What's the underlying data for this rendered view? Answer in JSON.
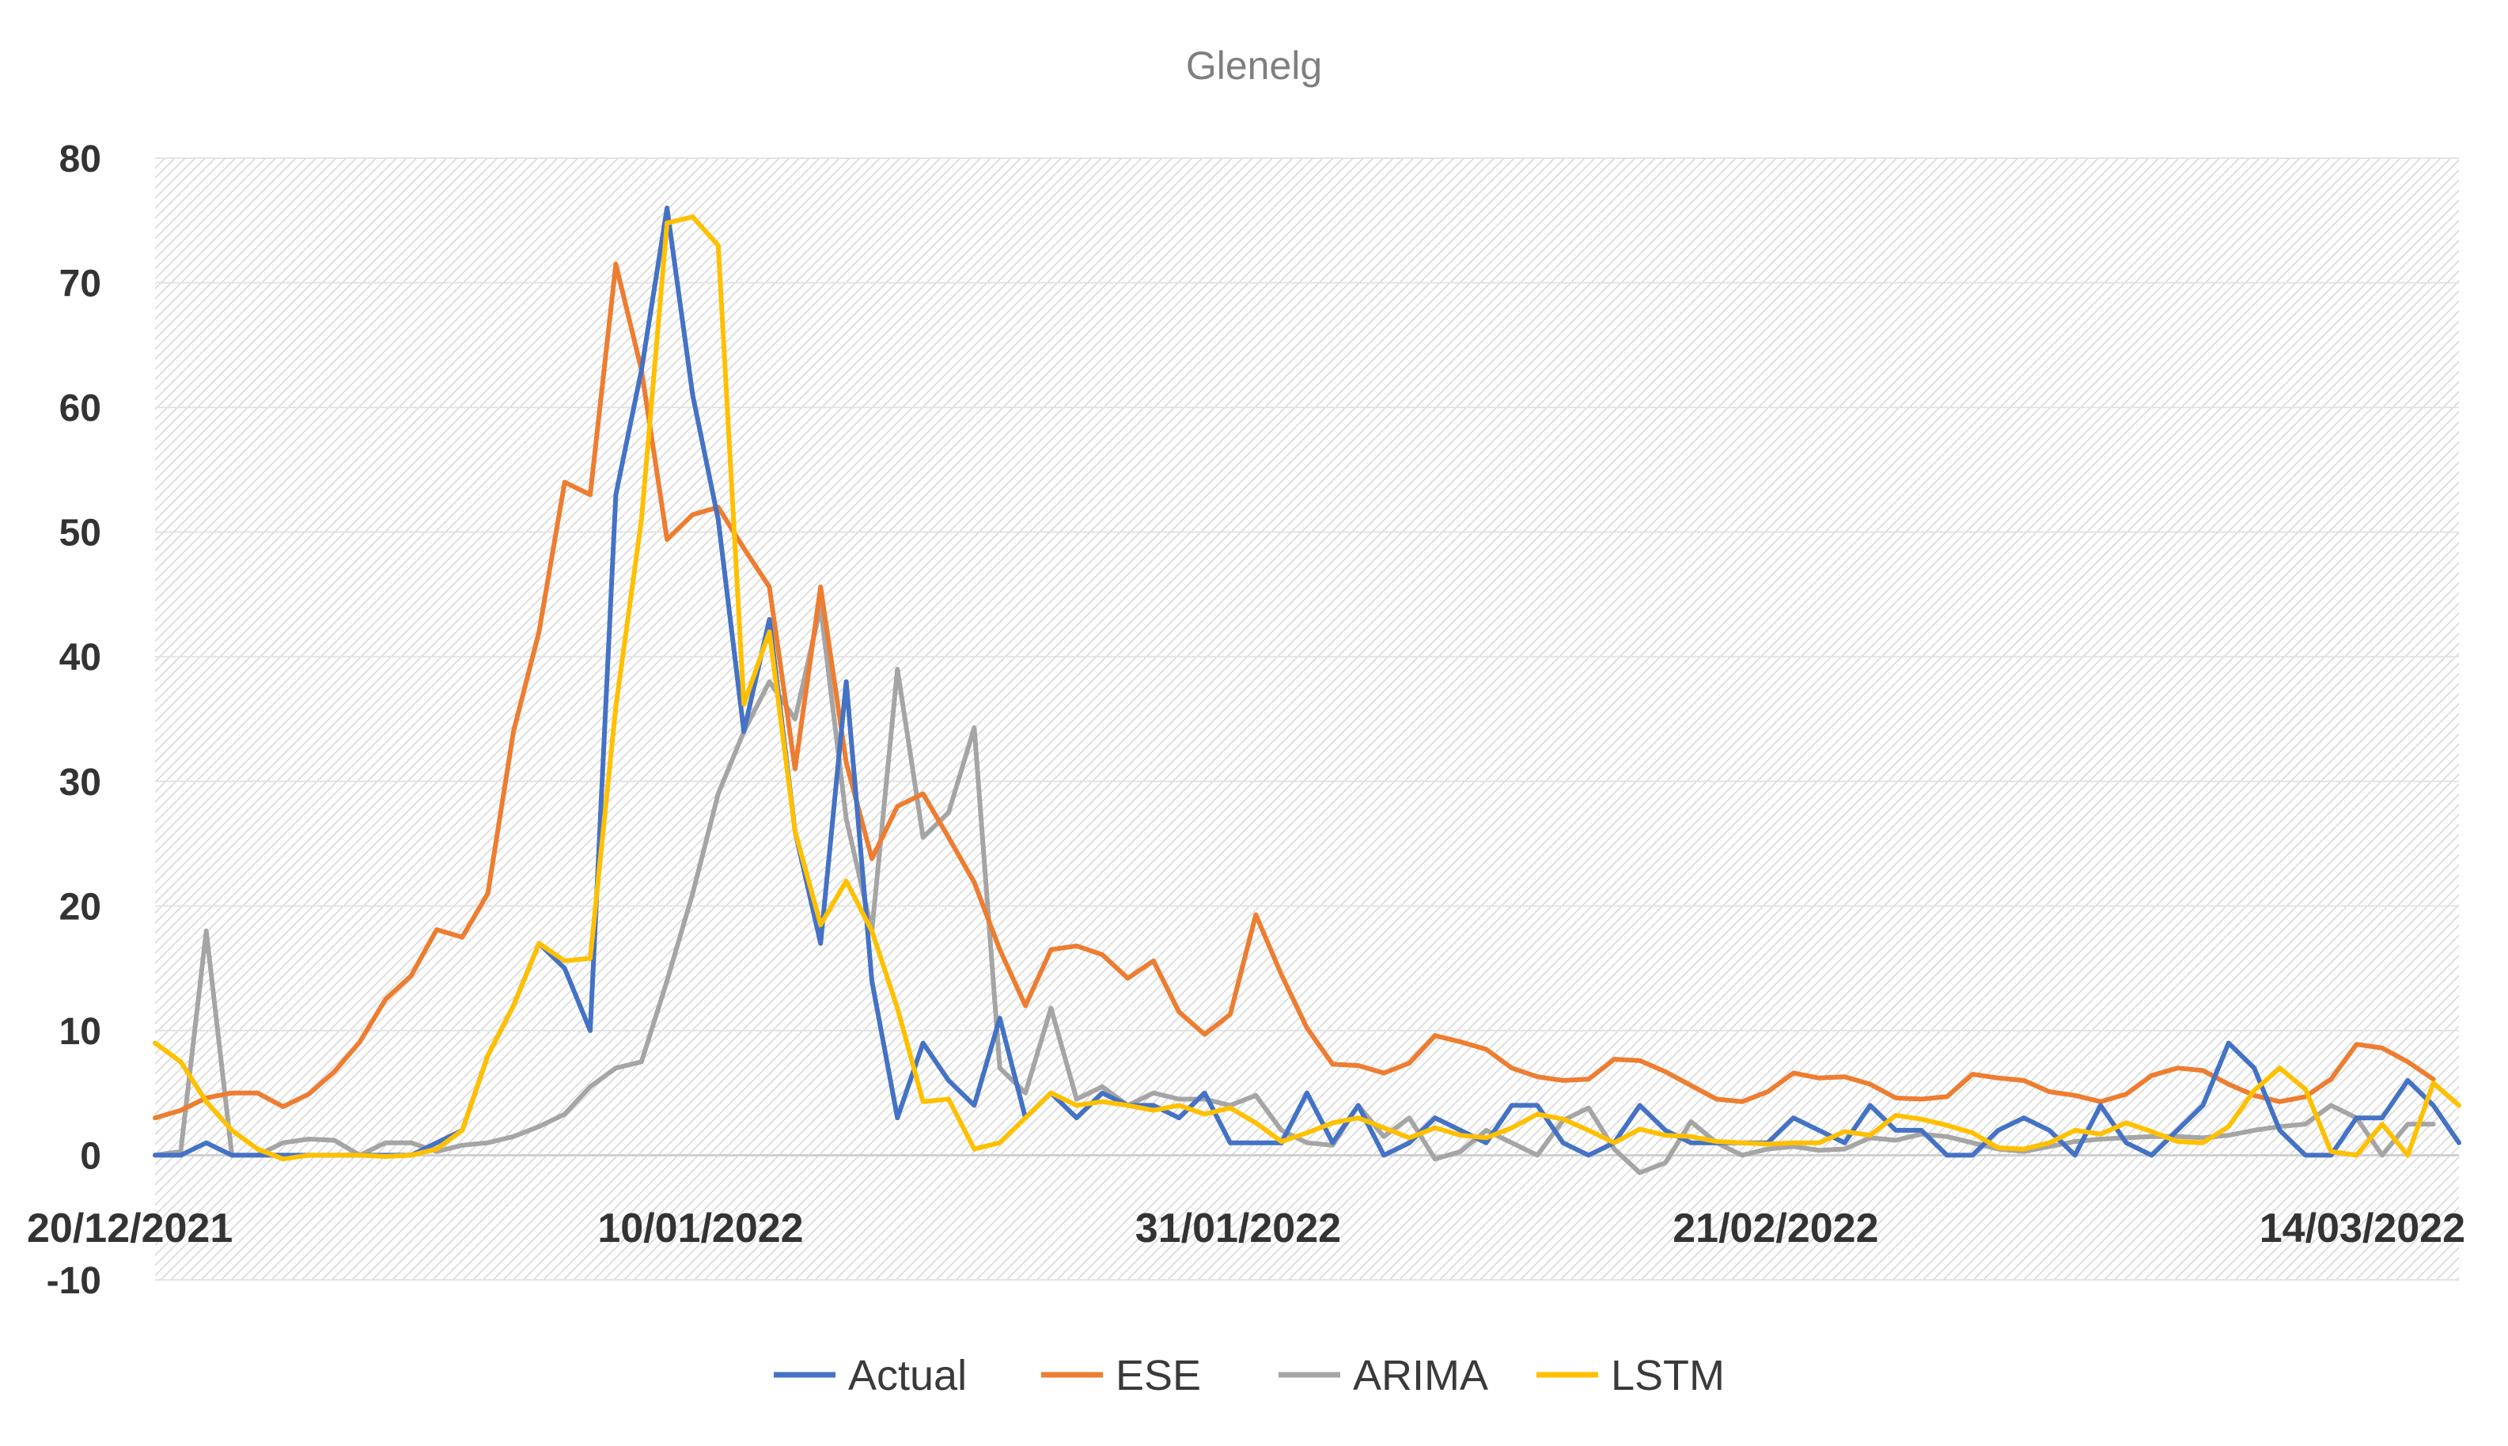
{
  "chart_data": {
    "type": "line",
    "title": "Glenelg",
    "xlabel": "",
    "ylabel": "",
    "ylim": [
      -10,
      80
    ],
    "yticks": [
      80,
      70,
      60,
      50,
      40,
      30,
      20,
      10,
      0,
      -10
    ],
    "xticks": [
      "20/12/2021",
      "10/01/2022",
      "31/01/2022",
      "21/02/2022",
      "14/03/2022"
    ],
    "x_start": "20/12/2021",
    "x_end": "22/03/2022",
    "legend_position": "bottom",
    "grid": true,
    "series": [
      {
        "name": "Actual",
        "color": "#4472C4",
        "values": [
          0,
          0,
          1,
          0,
          0,
          0,
          0,
          0,
          0,
          0,
          0,
          1,
          2,
          8,
          12,
          17,
          15,
          10,
          53,
          63,
          76,
          61,
          51,
          34,
          43,
          26,
          17,
          38,
          14,
          3,
          9,
          6,
          4,
          11,
          3,
          5,
          3,
          5,
          4,
          4,
          3,
          5,
          1,
          1,
          1,
          5,
          1,
          4,
          0,
          1,
          3,
          2,
          1,
          4,
          4,
          1,
          0,
          1,
          4,
          2,
          1,
          1,
          1,
          1,
          3,
          2,
          1,
          4,
          2,
          2,
          0,
          0,
          2,
          3,
          2,
          0,
          4,
          1,
          0,
          2,
          4,
          9,
          7,
          2,
          0,
          0,
          3,
          3,
          6,
          4,
          1
        ]
      },
      {
        "name": "ESE",
        "color": "#ED7D31",
        "values": [
          3,
          3.6,
          4.6,
          5,
          5,
          3.9,
          4.9,
          6.7,
          9.1,
          12.5,
          14.4,
          18.1,
          17.5,
          21,
          34,
          42,
          54,
          53,
          71.5,
          63,
          49.4,
          51.4,
          52,
          48.7,
          45.6,
          31,
          45.6,
          31.5,
          23.8,
          28,
          29,
          25.5,
          21.9,
          16.5,
          12,
          16.5,
          16.8,
          16.1,
          14.2,
          15.6,
          11.5,
          9.7,
          11.3,
          19.3,
          14.5,
          10.2,
          7.3,
          7.2,
          6.6,
          7.4,
          9.6,
          9.1,
          8.5,
          7,
          6.3,
          6,
          6.1,
          7.7,
          7.6,
          6.7,
          5.6,
          4.5,
          4.3,
          5.1,
          6.6,
          6.2,
          6.3,
          5.7,
          4.6,
          4.5,
          4.7,
          6.5,
          6.2,
          6,
          5.1,
          4.8,
          4.3,
          4.9,
          6.4,
          7,
          6.8,
          5.7,
          4.8,
          4.3,
          4.7,
          6.1,
          8.9,
          8.6,
          7.5,
          6.1
        ]
      },
      {
        "name": "ARIMA",
        "color": "#A5A5A5",
        "values": [
          0,
          0.3,
          18,
          0,
          0,
          1,
          1.3,
          1.2,
          0,
          1,
          1,
          0.3,
          0.8,
          1,
          1.5,
          2.3,
          3.3,
          5.5,
          7,
          7.5,
          14,
          21,
          29,
          34,
          38,
          35,
          44,
          27,
          18,
          39,
          25.5,
          27.5,
          34.3,
          7,
          5,
          11.8,
          4.5,
          5.5,
          4,
          5,
          4.5,
          4.5,
          4,
          4.8,
          2,
          1,
          0.8,
          4,
          1.5,
          3,
          -0.3,
          0.3,
          2,
          1,
          0,
          2.8,
          3.8,
          0.5,
          -1.4,
          -0.6,
          2.7,
          1,
          0,
          0.5,
          0.7,
          0.4,
          0.5,
          1.4,
          1.2,
          1.7,
          1.5,
          1,
          0.5,
          0.3,
          0.7,
          1.1,
          1.3,
          1.4,
          1.5,
          1.5,
          1.4,
          1.6,
          2,
          2.3,
          2.5,
          4,
          3,
          0,
          2.5,
          2.5
        ]
      },
      {
        "name": "LSTM",
        "color": "#FFC000",
        "values": [
          9,
          7.5,
          4.3,
          2,
          0.5,
          -0.3,
          0,
          0,
          0,
          -0.1,
          0,
          0.5,
          2,
          8,
          12,
          17,
          15.6,
          15.8,
          36,
          51,
          74.8,
          75.3,
          73,
          36.2,
          42,
          26,
          18.5,
          22,
          18,
          11.8,
          4.3,
          4.5,
          0.5,
          1,
          3,
          5,
          4,
          4.3,
          4,
          3.6,
          4,
          3.3,
          3.8,
          2.6,
          1.1,
          1.8,
          2.6,
          3,
          2.2,
          1.4,
          2.2,
          1.6,
          1.4,
          2.2,
          3.3,
          2.9,
          2,
          1,
          2.1,
          1.6,
          1.5,
          1.1,
          1,
          0.9,
          1,
          1,
          1.9,
          1.6,
          3.2,
          2.9,
          2.4,
          1.8,
          0.6,
          0.5,
          1,
          2,
          1.7,
          2.6,
          1.9,
          1.1,
          1,
          2.3,
          5.2,
          7,
          5.3,
          0.3,
          0,
          2.5,
          0,
          5.8,
          4
        ]
      }
    ]
  }
}
